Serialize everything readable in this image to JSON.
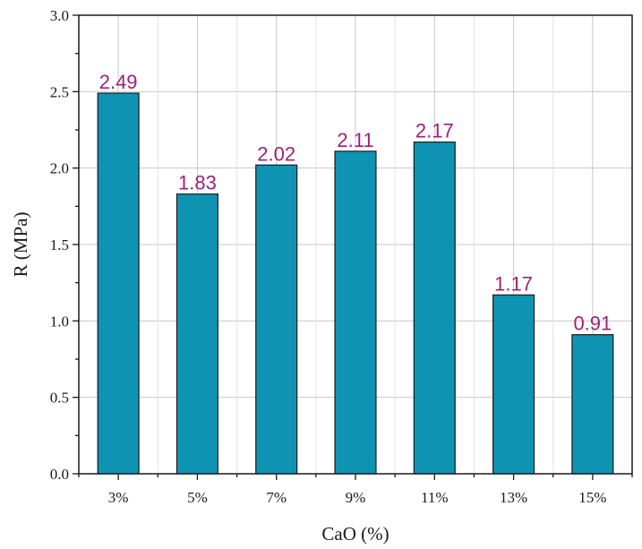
{
  "chart_data": {
    "type": "bar",
    "title": "",
    "xlabel": "CaO (%)",
    "ylabel": "R (MPa)",
    "categories": [
      "3%",
      "5%",
      "7%",
      "9%",
      "11%",
      "13%",
      "15%"
    ],
    "series": [
      {
        "values": [
          2.49,
          1.83,
          2.02,
          2.11,
          2.17,
          1.17,
          0.91
        ],
        "data_labels": [
          "2.49",
          "1.83",
          "2.02",
          "2.11",
          "2.17",
          "1.17",
          "0.91"
        ]
      }
    ],
    "ylim": [
      0,
      3.0
    ],
    "yticks": [
      0.0,
      0.5,
      1.0,
      1.5,
      2.0,
      2.5,
      3.0
    ],
    "ytick_labels": [
      "0.0",
      "0.5",
      "1.0",
      "1.5",
      "2.0",
      "2.5",
      "3.0"
    ],
    "grid": true,
    "legend": "none",
    "colors": {
      "bar_fill": "#0e93b3",
      "bar_stroke": "#1a1a1a",
      "data_label": "#a0207a",
      "grid": "#c8c8c8",
      "axis": "#1a1a1a"
    }
  }
}
